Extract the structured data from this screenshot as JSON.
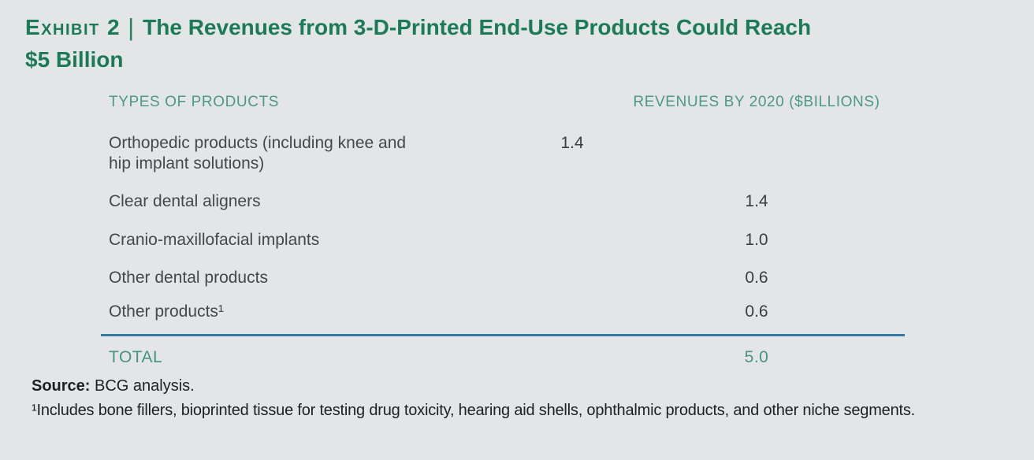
{
  "exhibit": {
    "label": "Exhibit 2",
    "separator": "|",
    "title_line1": "The Revenues from 3-D-Printed End-Use Products Could Reach",
    "title_line2": "$5 Billion"
  },
  "table": {
    "columns": {
      "products": "TYPES OF PRODUCTS",
      "revenues": "REVENUES BY 2020 ($BILLIONS)"
    },
    "rows": [
      {
        "label": "Orthopedic products (including knee and hip implant solutions)",
        "value": "1.4"
      },
      {
        "label": "Clear dental aligners",
        "value": "1.4"
      },
      {
        "label": "Cranio-maxillofacial implants",
        "value": "1.0"
      },
      {
        "label": "Other dental products",
        "value": "0.6"
      },
      {
        "label": "Other products¹",
        "value": "0.6"
      }
    ],
    "total": {
      "label": "TOTAL",
      "value": "5.0"
    }
  },
  "footer": {
    "source_label": "Source:",
    "source_text": " BCG analysis.",
    "footnote": "¹Includes bone fillers, bioprinted tissue for testing drug toxicity, hearing aid shells, ophthalmic products, and other niche segments."
  },
  "chart_data": {
    "type": "table",
    "title": "Exhibit 2 | The Revenues from 3-D-Printed End-Use Products Could Reach $5 Billion",
    "categories": [
      "Orthopedic products (including knee and hip implant solutions)",
      "Clear dental aligners",
      "Cranio-maxillofacial implants",
      "Other dental products",
      "Other products"
    ],
    "values": [
      1.4,
      1.4,
      1.0,
      0.6,
      0.6
    ],
    "total": 5.0,
    "value_label": "REVENUES BY 2020 ($BILLIONS)"
  },
  "colors": {
    "background": "#e4e5e7",
    "title_green": "#1b7b57",
    "column_header_green": "#4d9a82",
    "total_green": "#449579",
    "divider_blue": "#3679a4",
    "body_text": "#47474a",
    "footer_text": "#1f1f21"
  }
}
